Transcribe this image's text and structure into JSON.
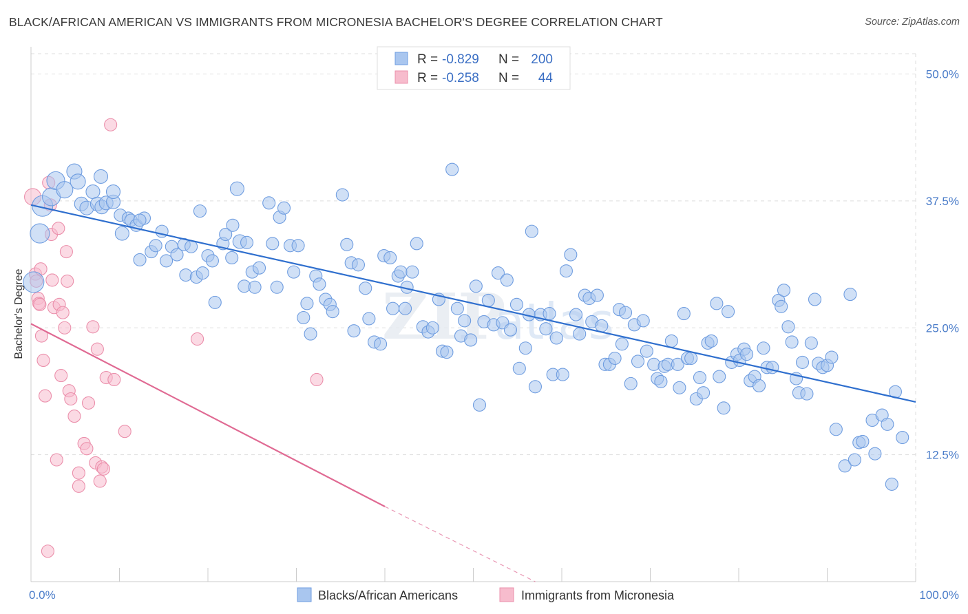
{
  "title": "BLACK/AFRICAN AMERICAN VS IMMIGRANTS FROM MICRONESIA BACHELOR'S DEGREE CORRELATION CHART",
  "source": "Source: ZipAtlas.com",
  "watermark": "ZIPatlas",
  "colors": {
    "blue_fill": "#a9c6ef",
    "blue_stroke": "#6f9de0",
    "blue_line": "#2f6fce",
    "pink_fill": "#f7bccd",
    "pink_stroke": "#eb8fab",
    "pink_line": "#e06a93",
    "grid": "#dddddd",
    "tick_text": "#4a7cc9"
  },
  "legend": {
    "rows": [
      {
        "r_label": "R =",
        "r_value": "-0.829",
        "n_label": "N =",
        "n_value": "200",
        "series": "blue"
      },
      {
        "r_label": "R =",
        "r_value": "-0.258",
        "n_label": "N =",
        "n_value": "44",
        "series": "pink"
      }
    ]
  },
  "chart_data": {
    "type": "scatter",
    "title": "BLACK/AFRICAN AMERICAN VS IMMIGRANTS FROM MICRONESIA BACHELOR'S DEGREE CORRELATION CHART",
    "xlabel": "",
    "ylabel": "Bachelor's Degree",
    "xlim": [
      0,
      100
    ],
    "ylim": [
      0,
      52
    ],
    "x_tick_labels": [
      "0.0%",
      "100.0%"
    ],
    "y_ticks": [
      12.5,
      25.0,
      37.5,
      50.0
    ],
    "y_tick_labels": [
      "12.5%",
      "25.0%",
      "37.5%",
      "50.0%"
    ],
    "series": [
      {
        "name": "Blacks/African Americans",
        "color_key": "blue",
        "r": -0.829,
        "n": 200,
        "trend": {
          "x0": 0,
          "y0": 37.1,
          "x1": 100,
          "y1": 17.7
        },
        "points": [
          [
            0.3,
            29.5,
            15
          ],
          [
            1.0,
            34.3,
            14
          ],
          [
            1.3,
            37.0,
            15
          ],
          [
            2.3,
            37.9,
            13
          ],
          [
            2.8,
            39.5,
            13
          ],
          [
            3.8,
            38.6,
            12
          ],
          [
            4.9,
            40.4,
            11
          ],
          [
            5.3,
            39.4,
            11
          ],
          [
            5.7,
            37.2,
            10
          ],
          [
            6.3,
            36.8,
            10
          ],
          [
            7.0,
            38.4,
            10
          ],
          [
            7.5,
            37.2,
            10
          ],
          [
            8.0,
            36.9,
            10
          ],
          [
            7.9,
            39.9,
            10
          ],
          [
            8.5,
            37.3,
            10
          ],
          [
            9.3,
            37.4,
            10
          ],
          [
            9.3,
            38.4,
            10
          ],
          [
            10.1,
            36.1,
            9
          ],
          [
            10.3,
            34.3,
            10
          ],
          [
            11.0,
            35.8,
            9
          ],
          [
            11.3,
            35.6,
            9
          ],
          [
            11.9,
            35.1,
            9
          ],
          [
            12.8,
            35.8,
            9
          ],
          [
            12.3,
            35.6,
            9
          ],
          [
            12.3,
            31.7,
            9
          ],
          [
            13.6,
            32.5,
            9
          ],
          [
            14.1,
            33.1,
            9
          ],
          [
            14.8,
            34.5,
            9
          ],
          [
            15.3,
            31.6,
            9
          ],
          [
            15.9,
            33.0,
            9
          ],
          [
            16.5,
            32.2,
            9
          ],
          [
            17.3,
            33.2,
            9
          ],
          [
            17.5,
            30.2,
            9
          ],
          [
            18.1,
            33.0,
            9
          ],
          [
            18.7,
            30.0,
            9
          ],
          [
            19.1,
            36.5,
            9
          ],
          [
            19.4,
            30.4,
            9
          ],
          [
            20.0,
            32.1,
            9
          ],
          [
            20.5,
            31.6,
            9
          ],
          [
            20.8,
            27.5,
            9
          ],
          [
            21.7,
            33.3,
            9
          ],
          [
            22.0,
            34.2,
            9
          ],
          [
            22.7,
            31.9,
            9
          ],
          [
            22.8,
            35.1,
            9
          ],
          [
            23.6,
            33.5,
            10
          ],
          [
            23.3,
            38.7,
            10
          ],
          [
            24.1,
            29.1,
            9
          ],
          [
            24.4,
            33.4,
            9
          ],
          [
            25.0,
            30.5,
            9
          ],
          [
            25.3,
            29.0,
            9
          ],
          [
            25.8,
            30.9,
            9
          ],
          [
            26.9,
            37.3,
            9
          ],
          [
            27.3,
            33.3,
            9
          ],
          [
            27.8,
            29.0,
            9
          ],
          [
            28.1,
            35.9,
            9
          ],
          [
            28.6,
            36.8,
            9
          ],
          [
            29.3,
            33.1,
            9
          ],
          [
            29.7,
            30.5,
            9
          ],
          [
            30.2,
            33.1,
            9
          ],
          [
            30.8,
            26.0,
            9
          ],
          [
            31.2,
            27.4,
            9
          ],
          [
            31.6,
            24.4,
            9
          ],
          [
            32.2,
            30.1,
            9
          ],
          [
            32.6,
            29.3,
            9
          ],
          [
            33.3,
            27.8,
            9
          ],
          [
            33.8,
            27.3,
            9
          ],
          [
            34.1,
            26.6,
            9
          ],
          [
            35.2,
            38.1,
            9
          ],
          [
            35.7,
            33.2,
            9
          ],
          [
            36.2,
            31.4,
            9
          ],
          [
            36.5,
            24.7,
            9
          ],
          [
            37.0,
            31.2,
            9
          ],
          [
            37.8,
            28.9,
            9
          ],
          [
            38.2,
            25.9,
            9
          ],
          [
            38.8,
            23.6,
            9
          ],
          [
            39.5,
            23.4,
            9
          ],
          [
            39.9,
            32.1,
            9
          ],
          [
            40.6,
            31.9,
            9
          ],
          [
            40.9,
            26.9,
            9
          ],
          [
            41.5,
            30.1,
            9
          ],
          [
            41.8,
            30.5,
            9
          ],
          [
            42.3,
            26.9,
            9
          ],
          [
            42.5,
            29.0,
            9
          ],
          [
            43.1,
            30.5,
            9
          ],
          [
            43.6,
            33.3,
            9
          ],
          [
            44.3,
            25.1,
            9
          ],
          [
            44.9,
            24.6,
            9
          ],
          [
            45.4,
            25.0,
            9
          ],
          [
            46.1,
            27.8,
            9
          ],
          [
            46.5,
            22.7,
            9
          ],
          [
            47.0,
            22.6,
            9
          ],
          [
            47.6,
            40.6,
            9
          ],
          [
            48.2,
            26.9,
            9
          ],
          [
            48.6,
            24.2,
            9
          ],
          [
            49.0,
            25.7,
            9
          ],
          [
            49.7,
            23.8,
            9
          ],
          [
            50.3,
            29.1,
            9
          ],
          [
            50.7,
            17.4,
            9
          ],
          [
            51.2,
            25.6,
            9
          ],
          [
            51.7,
            27.7,
            9
          ],
          [
            52.3,
            25.3,
            9
          ],
          [
            52.8,
            30.4,
            9
          ],
          [
            53.3,
            25.5,
            9
          ],
          [
            53.8,
            29.7,
            9
          ],
          [
            54.2,
            24.8,
            9
          ],
          [
            54.9,
            27.3,
            9
          ],
          [
            55.2,
            21.0,
            9
          ],
          [
            55.9,
            23.0,
            9
          ],
          [
            56.3,
            26.3,
            9
          ],
          [
            56.6,
            34.5,
            9
          ],
          [
            57.0,
            19.2,
            9
          ],
          [
            57.6,
            26.3,
            9
          ],
          [
            58.2,
            24.9,
            9
          ],
          [
            58.6,
            26.4,
            9
          ],
          [
            59.0,
            20.4,
            9
          ],
          [
            59.4,
            24.0,
            9
          ],
          [
            60.1,
            20.4,
            9
          ],
          [
            60.5,
            30.6,
            9
          ],
          [
            61.0,
            32.2,
            9
          ],
          [
            61.6,
            26.3,
            9
          ],
          [
            62.0,
            24.4,
            9
          ],
          [
            62.6,
            28.2,
            9
          ],
          [
            63.1,
            27.9,
            9
          ],
          [
            63.4,
            25.6,
            9
          ],
          [
            64.0,
            28.2,
            9
          ],
          [
            64.5,
            25.2,
            9
          ],
          [
            64.9,
            21.4,
            9
          ],
          [
            65.4,
            21.4,
            9
          ],
          [
            66.0,
            22.0,
            9
          ],
          [
            66.5,
            26.8,
            9
          ],
          [
            66.8,
            23.4,
            9
          ],
          [
            67.2,
            26.5,
            9
          ],
          [
            67.8,
            19.5,
            9
          ],
          [
            68.2,
            25.3,
            9
          ],
          [
            68.6,
            21.7,
            9
          ],
          [
            69.2,
            25.7,
            9
          ],
          [
            69.6,
            22.7,
            9
          ],
          [
            70.4,
            21.4,
            9
          ],
          [
            70.8,
            20.0,
            9
          ],
          [
            71.2,
            19.7,
            9
          ],
          [
            71.6,
            21.2,
            9
          ],
          [
            72.0,
            21.4,
            9
          ],
          [
            72.4,
            23.7,
            9
          ],
          [
            73.1,
            21.4,
            9
          ],
          [
            73.3,
            19.1,
            9
          ],
          [
            73.8,
            26.4,
            9
          ],
          [
            74.2,
            22.0,
            9
          ],
          [
            74.6,
            22.0,
            9
          ],
          [
            75.2,
            18.0,
            9
          ],
          [
            75.6,
            20.1,
            9
          ],
          [
            76.0,
            18.6,
            9
          ],
          [
            76.5,
            23.5,
            9
          ],
          [
            76.9,
            23.7,
            9
          ],
          [
            77.5,
            27.4,
            9
          ],
          [
            77.8,
            20.2,
            9
          ],
          [
            78.3,
            17.1,
            9
          ],
          [
            78.8,
            26.6,
            9
          ],
          [
            79.2,
            21.6,
            9
          ],
          [
            79.8,
            22.4,
            9
          ],
          [
            80.1,
            21.8,
            9
          ],
          [
            80.6,
            22.9,
            9
          ],
          [
            80.9,
            22.4,
            9
          ],
          [
            81.3,
            19.8,
            9
          ],
          [
            81.8,
            20.2,
            9
          ],
          [
            82.3,
            19.3,
            9
          ],
          [
            82.8,
            23.0,
            9
          ],
          [
            83.2,
            21.1,
            9
          ],
          [
            83.8,
            21.1,
            9
          ],
          [
            84.5,
            27.7,
            9
          ],
          [
            84.8,
            27.1,
            9
          ],
          [
            85.1,
            28.7,
            9
          ],
          [
            85.6,
            25.1,
            9
          ],
          [
            86.0,
            23.6,
            9
          ],
          [
            86.5,
            20.0,
            9
          ],
          [
            86.8,
            18.6,
            9
          ],
          [
            87.2,
            21.6,
            9
          ],
          [
            87.7,
            18.5,
            9
          ],
          [
            88.2,
            23.5,
            9
          ],
          [
            88.6,
            27.8,
            9
          ],
          [
            89.0,
            21.5,
            9
          ],
          [
            89.5,
            21.1,
            9
          ],
          [
            90.0,
            21.3,
            9
          ],
          [
            90.5,
            22.1,
            9
          ],
          [
            91.0,
            15.0,
            9
          ],
          [
            92.0,
            11.4,
            9
          ],
          [
            92.6,
            28.3,
            9
          ],
          [
            93.1,
            12.0,
            9
          ],
          [
            93.6,
            13.7,
            9
          ],
          [
            94.0,
            13.8,
            9
          ],
          [
            95.1,
            15.9,
            9
          ],
          [
            95.4,
            12.6,
            9
          ],
          [
            96.2,
            16.4,
            9
          ],
          [
            96.8,
            15.5,
            9
          ],
          [
            97.3,
            9.6,
            9
          ],
          [
            97.7,
            18.7,
            9
          ],
          [
            98.5,
            14.2,
            9
          ]
        ]
      },
      {
        "name": "Immigrants from Micronesia",
        "color_key": "pink",
        "r": -0.258,
        "n": 44,
        "trend_solid": {
          "x0": 0,
          "y0": 25.4,
          "x1": 40,
          "y1": 7.4
        },
        "trend_dashed": {
          "x0": 40,
          "y0": 7.4,
          "x1": 57,
          "y1": 0.0
        },
        "points": [
          [
            0.2,
            37.9,
            12
          ],
          [
            0.5,
            30.3,
            9
          ],
          [
            0.6,
            29.6,
            9
          ],
          [
            0.8,
            27.9,
            9
          ],
          [
            0.9,
            27.4,
            9
          ],
          [
            1.0,
            27.3,
            9
          ],
          [
            1.1,
            30.8,
            9
          ],
          [
            1.2,
            24.2,
            9
          ],
          [
            1.4,
            21.8,
            9
          ],
          [
            1.6,
            18.3,
            9
          ],
          [
            1.9,
            3.0,
            9
          ],
          [
            2.0,
            39.3,
            9
          ],
          [
            2.2,
            37.1,
            9
          ],
          [
            2.3,
            34.2,
            9
          ],
          [
            2.4,
            29.7,
            9
          ],
          [
            2.6,
            27.0,
            9
          ],
          [
            2.9,
            12.0,
            9
          ],
          [
            3.1,
            34.8,
            9
          ],
          [
            3.2,
            27.3,
            9
          ],
          [
            3.4,
            20.3,
            9
          ],
          [
            3.6,
            26.5,
            9
          ],
          [
            3.8,
            25.0,
            9
          ],
          [
            4.0,
            32.5,
            9
          ],
          [
            4.1,
            29.6,
            9
          ],
          [
            4.3,
            18.8,
            9
          ],
          [
            4.5,
            18.0,
            9
          ],
          [
            4.9,
            16.3,
            9
          ],
          [
            5.4,
            9.4,
            9
          ],
          [
            5.4,
            10.7,
            9
          ],
          [
            6.0,
            13.6,
            9
          ],
          [
            6.3,
            13.1,
            9
          ],
          [
            6.5,
            17.6,
            9
          ],
          [
            7.0,
            25.1,
            9
          ],
          [
            7.3,
            11.7,
            9
          ],
          [
            7.5,
            22.9,
            9
          ],
          [
            7.8,
            9.9,
            9
          ],
          [
            8.0,
            11.3,
            9
          ],
          [
            8.2,
            11.1,
            9
          ],
          [
            8.5,
            20.1,
            9
          ],
          [
            9.0,
            45.0,
            9
          ],
          [
            9.4,
            19.9,
            9
          ],
          [
            10.6,
            14.8,
            9
          ],
          [
            18.8,
            23.9,
            9
          ],
          [
            32.3,
            19.9,
            9
          ]
        ]
      }
    ],
    "legend_position": "top-center"
  }
}
